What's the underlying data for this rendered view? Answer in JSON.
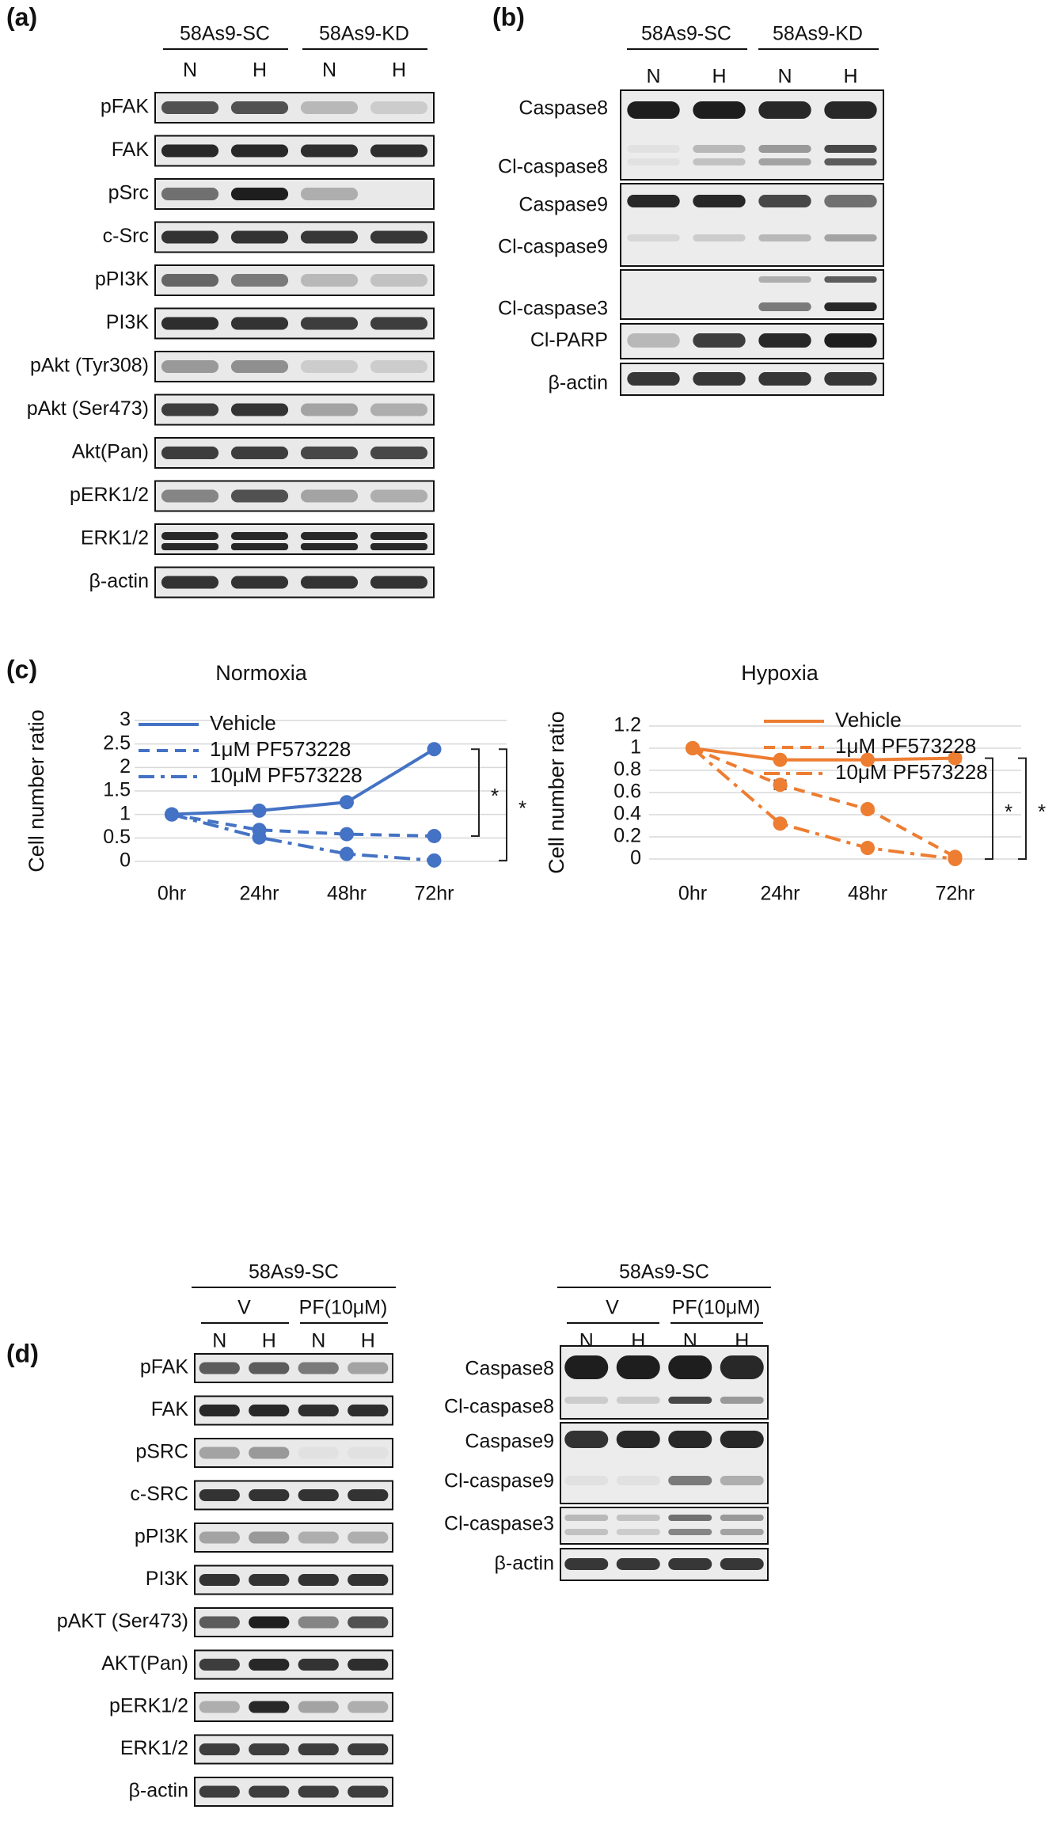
{
  "panels": {
    "a": {
      "letter": "(a)",
      "groups": [
        "58As9-SC",
        "58As9-KD"
      ],
      "lanes": [
        "N",
        "H",
        "N",
        "H"
      ],
      "blots": [
        {
          "label": "pFAK",
          "bands": [
            0.75,
            0.75,
            0.25,
            0.15
          ]
        },
        {
          "label": "FAK",
          "bands": [
            0.95,
            0.95,
            0.92,
            0.92
          ]
        },
        {
          "label": "pSrc",
          "bands": [
            0.6,
            1.0,
            0.3,
            0.0
          ]
        },
        {
          "label": "c-Src",
          "bands": [
            0.9,
            0.9,
            0.88,
            0.88
          ]
        },
        {
          "label": "pPI3K",
          "bands": [
            0.65,
            0.55,
            0.25,
            0.2
          ]
        },
        {
          "label": "PI3K",
          "bands": [
            0.92,
            0.9,
            0.85,
            0.85
          ]
        },
        {
          "label": "pAkt (Tyr308)",
          "bands": [
            0.4,
            0.45,
            0.15,
            0.15
          ]
        },
        {
          "label": "pAkt (Ser473)",
          "bands": [
            0.85,
            0.9,
            0.35,
            0.3
          ]
        },
        {
          "label": "Akt(Pan)",
          "bands": [
            0.85,
            0.85,
            0.8,
            0.8
          ]
        },
        {
          "label": "pERK1/2",
          "bands": [
            0.5,
            0.75,
            0.35,
            0.3
          ]
        },
        {
          "label": "ERK1/2",
          "bands": [
            0.95,
            0.95,
            0.95,
            0.95
          ]
        },
        {
          "label": "β-actin",
          "bands": [
            0.9,
            0.9,
            0.9,
            0.9
          ]
        }
      ]
    },
    "b": {
      "letter": "(b)",
      "groups": [
        "58As9-SC",
        "58As9-KD"
      ],
      "lanes": [
        "N",
        "H",
        "N",
        "H"
      ],
      "labels": [
        "Caspase8",
        "Cl-caspase8",
        "Caspase9",
        "Cl-caspase9",
        "Cl-caspase3",
        "Cl-PARP",
        "β-actin"
      ]
    },
    "c": {
      "letter": "(c)",
      "yaxis_label": "Cell number ratio",
      "significance": "*"
    },
    "d": {
      "letter": "(d)",
      "group": "58As9-SC",
      "treatments": [
        "V",
        "PF(10μM)"
      ],
      "lanes": [
        "N",
        "H",
        "N",
        "H"
      ],
      "left_blots": [
        {
          "label": "pFAK",
          "bands": [
            0.7,
            0.7,
            0.55,
            0.35
          ]
        },
        {
          "label": "FAK",
          "bands": [
            0.95,
            0.95,
            0.92,
            0.92
          ]
        },
        {
          "label": "pSRC",
          "bands": [
            0.35,
            0.4,
            0.05,
            0.05
          ]
        },
        {
          "label": "c-SRC",
          "bands": [
            0.9,
            0.9,
            0.9,
            0.9
          ]
        },
        {
          "label": "pPI3K",
          "bands": [
            0.35,
            0.4,
            0.3,
            0.3
          ]
        },
        {
          "label": "PI3K",
          "bands": [
            0.9,
            0.9,
            0.9,
            0.9
          ]
        },
        {
          "label": "pAKT (Ser473)",
          "bands": [
            0.7,
            1.0,
            0.5,
            0.75
          ]
        },
        {
          "label": "AKT(Pan)",
          "bands": [
            0.85,
            0.95,
            0.9,
            0.92
          ]
        },
        {
          "label": "pERK1/2",
          "bands": [
            0.3,
            0.95,
            0.35,
            0.3
          ]
        },
        {
          "label": "ERK1/2",
          "bands": [
            0.85,
            0.85,
            0.85,
            0.85
          ]
        },
        {
          "label": "β-actin",
          "bands": [
            0.85,
            0.85,
            0.85,
            0.85
          ]
        }
      ],
      "right_labels": [
        "Caspase8",
        "Cl-caspase8",
        "Caspase9",
        "Cl-caspase9",
        "Cl-caspase3",
        "β-actin"
      ]
    }
  },
  "chart_data": [
    {
      "type": "line",
      "title": "Normoxia",
      "ylabel": "Cell number ratio",
      "xlabel": "",
      "categories": [
        "0hr",
        "24hr",
        "48hr",
        "72hr"
      ],
      "ylim": [
        0,
        3
      ],
      "yticks": [
        "0",
        "0.5",
        "1",
        "1.5",
        "2",
        "2.5",
        "3"
      ],
      "grid": true,
      "legend": "top-left",
      "color": "#4472C4",
      "series": [
        {
          "name": "Vehicle",
          "style": "solid",
          "values": [
            1,
            1.08,
            1.26,
            2.39
          ],
          "errors": [
            0,
            0.03,
            0.02,
            0.05
          ]
        },
        {
          "name": "1μM PF573228",
          "style": "dashed",
          "values": [
            1,
            0.67,
            0.58,
            0.54
          ],
          "errors": [
            0,
            0.02,
            0.02,
            0.02
          ]
        },
        {
          "name": "10μM PF573228",
          "style": "dashdot",
          "values": [
            1,
            0.51,
            0.16,
            0.02
          ],
          "errors": [
            0,
            0.02,
            0.01,
            0.01
          ]
        }
      ],
      "annotations": [
        "*",
        "*"
      ]
    },
    {
      "type": "line",
      "title": "Hypoxia",
      "ylabel": "Cell number ratio",
      "xlabel": "",
      "categories": [
        "0hr",
        "24hr",
        "48hr",
        "72hr"
      ],
      "ylim": [
        0,
        1.2
      ],
      "yticks": [
        "0",
        "0.2",
        "0.4",
        "0.6",
        "0.8",
        "1",
        "1.2"
      ],
      "grid": true,
      "legend": "top-right",
      "color": "#ED7D31",
      "series": [
        {
          "name": "Vehicle",
          "style": "solid",
          "values": [
            1,
            0.895,
            0.895,
            0.91
          ],
          "errors": [
            0,
            0.02,
            0.015,
            0.03
          ]
        },
        {
          "name": "1μM PF573228",
          "style": "dashed",
          "values": [
            1,
            0.67,
            0.45,
            0.02
          ],
          "errors": [
            0,
            0.04,
            0.02,
            0.01
          ]
        },
        {
          "name": "10μM PF573228",
          "style": "dashdot",
          "values": [
            1,
            0.32,
            0.1,
            0.0
          ],
          "errors": [
            0,
            0.015,
            0.01,
            0.01
          ]
        }
      ],
      "annotations": [
        "*",
        "*"
      ]
    }
  ]
}
